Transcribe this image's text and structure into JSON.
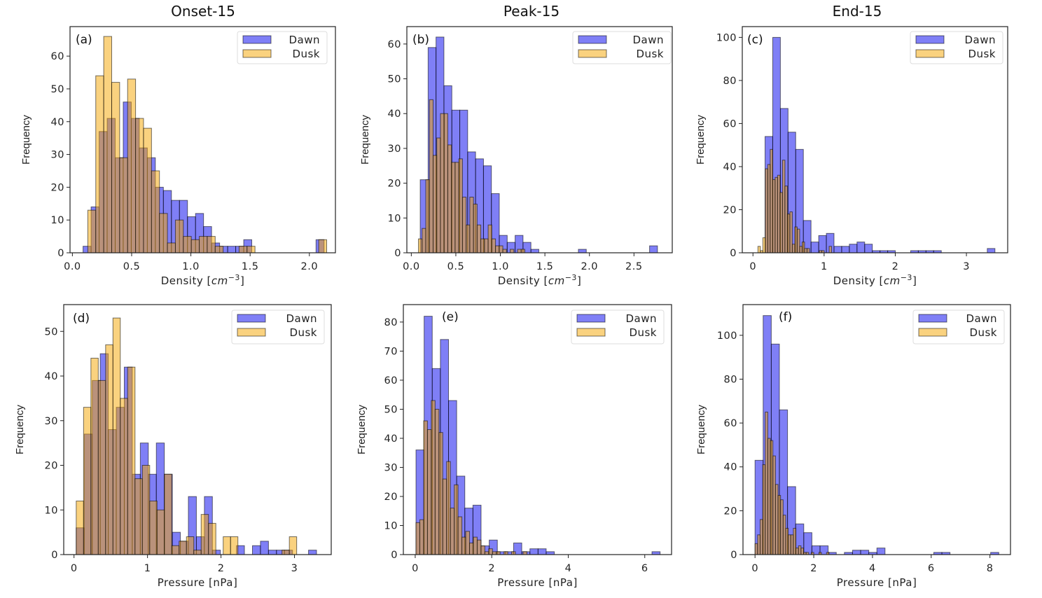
{
  "colors": {
    "dawn": "#0000ee",
    "dusk": "#f5a500",
    "bar_alpha": 0.5,
    "edge": "#000000"
  },
  "column_titles": [
    "Onset-15",
    "Peak-15",
    "End-15"
  ],
  "legend": [
    "Dawn",
    "Dusk"
  ],
  "chart_data": [
    {
      "type": "bar",
      "panel": "(a)",
      "title": "Onset-15",
      "xlabel": "Density [cm^-3]",
      "ylabel": "Frequency",
      "xlim": [
        -0.02,
        2.22
      ],
      "ylim": [
        0,
        69
      ],
      "xticks": [
        0.0,
        0.5,
        1.0,
        1.5,
        2.0
      ],
      "xtick_labels": [
        "0.0",
        "0.5",
        "1.0",
        "1.5",
        "2.0"
      ],
      "yticks": [
        0,
        10,
        20,
        30,
        40,
        50,
        60
      ],
      "legend": "top-right",
      "series": [
        {
          "name": "Dawn",
          "bin_start": 0.09,
          "bin_width": 0.0678,
          "values": [
            2,
            14,
            37,
            41,
            29,
            46,
            41,
            32,
            29,
            20,
            19,
            16,
            16,
            11,
            12,
            8,
            3,
            2,
            2,
            2,
            4,
            0,
            0,
            0,
            0,
            0,
            0,
            0,
            0,
            4
          ]
        },
        {
          "name": "Dusk",
          "bin_start": 0.13,
          "bin_width": 0.0672,
          "values": [
            13,
            54,
            66,
            52,
            29,
            53,
            41,
            38,
            25,
            12,
            3,
            10,
            5,
            4,
            5,
            5,
            2,
            0,
            0,
            2,
            2,
            0,
            0,
            0,
            0,
            0,
            0,
            0,
            0,
            4
          ]
        }
      ]
    },
    {
      "type": "bar",
      "panel": "(b)",
      "title": "Peak-15",
      "xlabel": "Density [cm^-3]",
      "ylabel": "Frequency",
      "xlim": [
        -0.05,
        2.93
      ],
      "ylim": [
        0,
        65
      ],
      "xticks": [
        0.0,
        0.5,
        1.0,
        1.5,
        2.0,
        2.5
      ],
      "xtick_labels": [
        "0.0",
        "0.5",
        "1.0",
        "1.5",
        "2.0",
        "2.5"
      ],
      "yticks": [
        0,
        10,
        20,
        30,
        40,
        50,
        60
      ],
      "legend": "top-right",
      "series": [
        {
          "name": "Dawn",
          "bin_start": 0.1,
          "bin_width": 0.0888,
          "values": [
            21,
            59,
            62,
            48,
            41,
            41,
            29,
            27,
            25,
            17,
            5,
            3,
            5,
            3,
            1,
            0,
            0,
            0,
            0,
            0,
            1,
            0,
            0,
            0,
            0,
            0,
            0,
            0,
            0,
            2
          ]
        },
        {
          "name": "Dusk",
          "bin_start": 0.08,
          "bin_width": 0.0412,
          "values": [
            4,
            7,
            21,
            44,
            28,
            33,
            40,
            40,
            31,
            26,
            26,
            27,
            16,
            8,
            16,
            14,
            8,
            4,
            4,
            8,
            4,
            2,
            2,
            1,
            0,
            1,
            0,
            1,
            1
          ]
        }
      ]
    },
    {
      "type": "bar",
      "panel": "(c)",
      "title": "End-15",
      "xlabel": "Density [cm^-3]",
      "ylabel": "Frequency",
      "xlim": [
        -0.15,
        3.58
      ],
      "ylim": [
        0,
        105
      ],
      "xticks": [
        0,
        1,
        2,
        3
      ],
      "xtick_labels": [
        "0",
        "1",
        "2",
        "3"
      ],
      "yticks": [
        0,
        20,
        40,
        60,
        80,
        100
      ],
      "legend": "top-right",
      "series": [
        {
          "name": "Dawn",
          "bin_start": 0.17,
          "bin_width": 0.1077,
          "values": [
            54,
            100,
            67,
            56,
            48,
            15,
            5,
            8,
            9,
            3,
            3,
            4,
            5,
            4,
            1,
            1,
            1,
            0,
            0,
            1,
            1,
            1,
            1,
            0,
            0,
            0,
            0,
            0,
            0,
            2
          ]
        },
        {
          "name": "Dusk",
          "bin_start": 0.07,
          "bin_width": 0.0345,
          "values": [
            3,
            1,
            7,
            39,
            41,
            48,
            34,
            35,
            36,
            28,
            43,
            31,
            18,
            19,
            4,
            12,
            11,
            3,
            5,
            2,
            2,
            0,
            0,
            0,
            0,
            1,
            1,
            0,
            0,
            3
          ]
        }
      ]
    },
    {
      "type": "bar",
      "panel": "(d)",
      "title": "Onset-15",
      "xlabel": "Pressure [nPa]",
      "ylabel": "Frequency",
      "xlim": [
        -0.14,
        3.5
      ],
      "ylim": [
        0,
        56
      ],
      "xticks": [
        0,
        1,
        2,
        3
      ],
      "xtick_labels": [
        "0",
        "1",
        "2",
        "3"
      ],
      "yticks": [
        0,
        10,
        20,
        30,
        40,
        50
      ],
      "legend": "top-right",
      "series": [
        {
          "name": "Dawn",
          "bin_start": 0.03,
          "bin_width": 0.109,
          "values": [
            6,
            27,
            39,
            45,
            28,
            33,
            42,
            18,
            25,
            18,
            25,
            18,
            5,
            3,
            13,
            4,
            13,
            1,
            0,
            0,
            2,
            0,
            2,
            3,
            1,
            1,
            1,
            0,
            0,
            1
          ]
        },
        {
          "name": "Dusk",
          "bin_start": 0.03,
          "bin_width": 0.1,
          "values": [
            12,
            33,
            44,
            39,
            47,
            53,
            35,
            42,
            17,
            20,
            12,
            10,
            18,
            2,
            3,
            4,
            1,
            9,
            7,
            0,
            4,
            4,
            0,
            0,
            0,
            0,
            0,
            0,
            1,
            4
          ]
        }
      ]
    },
    {
      "type": "bar",
      "panel": "(e)",
      "title": "Peak-15",
      "xlabel": "Pressure [nPa]",
      "ylabel": "Frequency",
      "xlim": [
        -0.31,
        6.7
      ],
      "ylim": [
        0,
        86
      ],
      "xticks": [
        0,
        2,
        4,
        6
      ],
      "xtick_labels": [
        "0",
        "2",
        "4",
        "6"
      ],
      "yticks": [
        0,
        10,
        20,
        30,
        40,
        50,
        60,
        70,
        80
      ],
      "legend": "top-right",
      "series": [
        {
          "name": "Dawn",
          "bin_start": 0.02,
          "bin_width": 0.2127,
          "values": [
            36,
            82,
            64,
            74,
            53,
            27,
            16,
            17,
            3,
            5,
            1,
            1,
            4,
            1,
            2,
            2,
            1,
            0,
            0,
            0,
            0,
            0,
            0,
            0,
            0,
            0,
            0,
            0,
            0,
            1
          ]
        },
        {
          "name": "Dusk",
          "bin_start": 0.02,
          "bin_width": 0.1,
          "values": [
            11,
            12,
            46,
            43,
            53,
            50,
            42,
            26,
            32,
            16,
            24,
            13,
            6,
            8,
            4,
            6,
            5,
            3,
            1,
            2,
            1,
            1,
            0,
            1,
            0,
            1,
            0,
            0,
            1
          ]
        }
      ]
    },
    {
      "type": "bar",
      "panel": "(f)",
      "title": "End-15",
      "xlabel": "Pressure [nPa]",
      "ylabel": "Frequency",
      "xlim": [
        -0.41,
        8.7
      ],
      "ylim": [
        0,
        114
      ],
      "xticks": [
        0,
        2,
        4,
        6,
        8
      ],
      "xtick_labels": [
        "0",
        "2",
        "4",
        "6",
        "8"
      ],
      "yticks": [
        0,
        20,
        40,
        60,
        80,
        100
      ],
      "legend": "top-right",
      "series": [
        {
          "name": "Dawn",
          "bin_start": 0.0,
          "bin_width": 0.2767,
          "values": [
            43,
            109,
            96,
            66,
            31,
            14,
            10,
            4,
            4,
            1,
            0,
            1,
            2,
            2,
            1,
            3,
            0,
            0,
            0,
            0,
            0,
            0,
            1,
            1,
            0,
            0,
            0,
            0,
            0,
            1
          ]
        },
        {
          "name": "Dusk",
          "bin_start": 0.0,
          "bin_width": 0.087,
          "values": [
            5,
            9,
            16,
            41,
            65,
            53,
            52,
            45,
            32,
            27,
            25,
            18,
            12,
            9,
            9,
            12,
            3,
            4,
            3,
            1,
            1,
            0,
            1,
            0,
            0,
            1,
            0,
            0,
            1
          ]
        }
      ]
    }
  ]
}
